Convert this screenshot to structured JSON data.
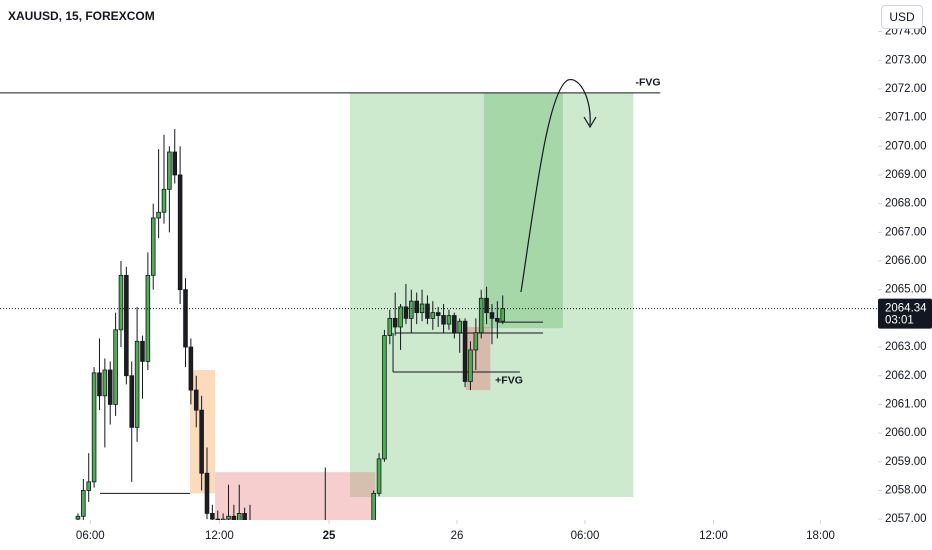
{
  "chart_data": {
    "type": "candlestick",
    "title": "XAUUSD, 15, FOREXCOM",
    "currency": "USD",
    "up_color": "#4caf50",
    "down_color": "#1e1e1e",
    "wick_color": "#131722",
    "x": [
      15,
      16,
      17,
      18,
      19,
      20,
      21,
      22,
      23,
      24,
      25,
      26,
      27,
      28,
      29,
      30,
      31,
      32,
      33,
      34,
      35,
      36,
      37,
      38,
      39,
      40,
      41,
      42,
      43,
      44,
      45,
      46,
      47,
      48,
      49,
      50,
      51,
      52,
      53,
      54,
      55,
      56,
      57,
      58,
      59,
      60,
      61,
      62,
      63,
      64,
      65,
      66,
      67,
      68,
      69,
      70,
      71,
      72,
      73,
      74,
      75,
      76,
      77,
      78,
      79,
      80,
      81,
      82,
      83,
      84,
      85,
      86,
      87,
      88,
      89,
      90,
      91,
      92,
      93,
      94
    ],
    "open": [
      2057.0,
      2057.1,
      2058.0,
      2058.3,
      2062.1,
      2061.3,
      2062.2,
      2061.0,
      2063.6,
      2065.5,
      2062.0,
      2060.2,
      2063.2,
      2062.5,
      2065.5,
      2067.5,
      2067.7,
      2068.5,
      2069.8,
      2069.0,
      2065.0,
      2063.0,
      2061.5,
      2060.8,
      2058.6,
      2057.2,
      2057.0,
      2056.9,
      2057.0,
      2057.1,
      2056.9,
      2057.2,
      2056.9,
      2056.7,
      2056.7,
      2056.6,
      2056.7,
      2056.6,
      2056.7,
      2056.6,
      2056.7,
      2056.6,
      2056.7,
      2056.6,
      2056.7,
      2056.6,
      2056.8,
      2056.6,
      2056.7,
      2056.6,
      2056.7,
      2056.6,
      2056.7,
      2056.6,
      2056.7,
      2056.8,
      2057.9,
      2059.1,
      2063.4,
      2064.0,
      2063.7,
      2064.4,
      2064.0,
      2064.6,
      2064.2,
      2064.5,
      2064.0,
      2064.2,
      2064.1,
      2063.8,
      2064.1,
      2063.5,
      2063.9,
      2061.8,
      2062.9,
      2063.5,
      2064.7,
      2064.2,
      2064.0,
      2063.9
    ],
    "high": [
      2057.2,
      2058.4,
      2059.3,
      2062.3,
      2063.3,
      2062.6,
      2062.5,
      2064.2,
      2066.0,
      2065.8,
      2062.5,
      2064.4,
      2063.4,
      2066.3,
      2068.0,
      2069.9,
      2070.4,
      2070.0,
      2070.6,
      2070.0,
      2065.4,
      2063.3,
      2062.0,
      2061.3,
      2059.5,
      2057.5,
      2057.3,
      2057.2,
      2058.2,
      2057.5,
      2058.2,
      2057.4,
      2057.5,
      2056.9,
      2056.9,
      2056.8,
      2056.9,
      2056.8,
      2056.9,
      2056.8,
      2056.9,
      2056.8,
      2056.9,
      2056.8,
      2056.9,
      2056.8,
      2058.8,
      2056.8,
      2056.9,
      2056.8,
      2056.9,
      2056.8,
      2056.9,
      2056.8,
      2056.9,
      2058.0,
      2059.3,
      2063.6,
      2064.3,
      2064.9,
      2064.5,
      2065.2,
      2065.0,
      2064.9,
      2065.0,
      2064.8,
      2064.6,
      2064.4,
      2064.5,
      2064.3,
      2064.2,
      2064.0,
      2064.0,
      2063.2,
      2064.0,
      2065.0,
      2065.1,
      2064.5,
      2064.6,
      2064.8
    ],
    "low": [
      2056.9,
      2056.9,
      2057.6,
      2058.1,
      2060.8,
      2059.5,
      2060.3,
      2060.6,
      2063.0,
      2061.7,
      2058.3,
      2059.7,
      2061.2,
      2062.2,
      2065.0,
      2066.8,
      2067.3,
      2067.0,
      2068.7,
      2064.5,
      2062.3,
      2061.0,
      2060.2,
      2058.0,
      2057.0,
      2056.8,
      2056.7,
      2056.6,
      2056.8,
      2056.7,
      2056.8,
      2056.7,
      2056.7,
      2056.5,
      2056.5,
      2056.4,
      2056.5,
      2056.4,
      2056.5,
      2056.4,
      2056.5,
      2056.4,
      2056.5,
      2056.4,
      2056.5,
      2056.4,
      2056.5,
      2056.4,
      2056.5,
      2056.4,
      2056.5,
      2056.4,
      2056.5,
      2056.4,
      2056.5,
      2056.7,
      2057.8,
      2059.0,
      2063.1,
      2063.4,
      2062.9,
      2063.8,
      2063.5,
      2063.8,
      2063.9,
      2063.8,
      2063.6,
      2063.7,
      2063.5,
      2063.6,
      2063.3,
      2062.8,
      2061.6,
      2061.5,
      2062.2,
      2063.3,
      2063.8,
      2063.1,
      2063.3,
      2063.8
    ],
    "close": [
      2057.1,
      2058.0,
      2058.3,
      2062.1,
      2061.3,
      2062.2,
      2061.0,
      2063.6,
      2065.5,
      2062.0,
      2060.2,
      2063.2,
      2062.5,
      2065.5,
      2067.5,
      2067.7,
      2068.5,
      2069.8,
      2069.0,
      2065.0,
      2063.0,
      2061.5,
      2060.8,
      2058.6,
      2057.2,
      2057.0,
      2056.9,
      2057.0,
      2057.1,
      2056.9,
      2057.2,
      2056.9,
      2056.7,
      2056.7,
      2056.6,
      2056.7,
      2056.6,
      2056.7,
      2056.6,
      2056.7,
      2056.6,
      2056.7,
      2056.6,
      2056.7,
      2056.6,
      2056.8,
      2056.6,
      2056.7,
      2056.6,
      2056.7,
      2056.6,
      2056.7,
      2056.6,
      2056.7,
      2056.8,
      2057.9,
      2059.1,
      2063.4,
      2064.0,
      2063.7,
      2064.4,
      2064.0,
      2064.6,
      2064.2,
      2064.5,
      2064.0,
      2064.2,
      2064.1,
      2063.8,
      2064.1,
      2063.5,
      2063.9,
      2061.8,
      2062.9,
      2063.5,
      2064.7,
      2064.2,
      2064.0,
      2063.9,
      2064.34
    ],
    "xlim": [
      0.5,
      163.8
    ],
    "ylim": [
      2056.97,
      2075.1
    ],
    "xticks": [
      {
        "value": 17.3,
        "label": "06:00"
      },
      {
        "value": 41.3,
        "label": "12:00"
      },
      {
        "value": 61.7,
        "label": "25",
        "bold": true
      },
      {
        "value": 85.5,
        "label": "26"
      },
      {
        "value": 109.3,
        "label": "06:00"
      },
      {
        "value": 133.2,
        "label": "12:00"
      },
      {
        "value": 153.1,
        "label": "18:00"
      }
    ],
    "yticks": [
      {
        "value": 2057,
        "label": "2057.00"
      },
      {
        "value": 2058,
        "label": "2058.00"
      },
      {
        "value": 2059,
        "label": "2059.00"
      },
      {
        "value": 2060,
        "label": "2060.00"
      },
      {
        "value": 2061,
        "label": "2061.00"
      },
      {
        "value": 2062,
        "label": "2062.00"
      },
      {
        "value": 2063,
        "label": "2063.00"
      },
      {
        "value": 2064,
        "label": "2064.00"
      },
      {
        "value": 2065,
        "label": "2065.00"
      },
      {
        "value": 2066,
        "label": "2066.00"
      },
      {
        "value": 2067,
        "label": "2067.00"
      },
      {
        "value": 2068,
        "label": "2068.00"
      },
      {
        "value": 2069,
        "label": "2069.00"
      },
      {
        "value": 2070,
        "label": "2070.00"
      },
      {
        "value": 2071,
        "label": "2071.00"
      },
      {
        "value": 2072,
        "label": "2072.00"
      },
      {
        "value": 2073,
        "label": "2073.00"
      },
      {
        "value": 2074,
        "label": "2074.00"
      }
    ],
    "last_price": 2064.34,
    "countdown": "03:01",
    "zones": [
      {
        "x0": 65.6,
        "x1": 118.3,
        "y0": 2057.77,
        "y1": 2071.86,
        "color": "rgba(76,175,80,0.28)"
      },
      {
        "x0": 90.5,
        "x1": 105.2,
        "y0": 2063.66,
        "y1": 2071.86,
        "color": "rgba(76,175,80,0.3)"
      },
      {
        "x0": 35.85,
        "x1": 40.5,
        "y0": 2057.9,
        "y1": 2062.2,
        "color": "rgba(245,166,80,0.4)"
      },
      {
        "x0": 40.5,
        "x1": 70.3,
        "y0": 2056.97,
        "y1": 2058.64,
        "color": "rgba(229,115,115,0.35)"
      },
      {
        "x0": 87.2,
        "x1": 91.7,
        "y0": 2061.5,
        "y1": 2063.7,
        "color": "rgba(229,115,115,0.4)"
      }
    ],
    "lines": [
      {
        "x1": 0.5,
        "x2": 123.3,
        "y1": 2071.86,
        "y2": 2071.86
      },
      {
        "x1": 19.1,
        "x2": 35.85,
        "y1": 2057.9,
        "y2": 2057.9
      },
      {
        "x1": 92.9,
        "x2": 101.5,
        "y1": 2063.87,
        "y2": 2063.87
      },
      {
        "x1": 74.0,
        "x2": 101.5,
        "y1": 2063.49,
        "y2": 2063.49
      },
      {
        "x1": 73.6,
        "x2": 97.2,
        "y1": 2062.13,
        "y2": 2062.13
      },
      {
        "x1": 73.6,
        "x2": 73.6,
        "y1": 2062.13,
        "y2": 2063.49
      }
    ],
    "annotations": [
      {
        "text": "-FVG",
        "x": 118.7,
        "y": 2072.22
      },
      {
        "text": "+FVG",
        "x": 92.6,
        "y": 2061.83
      }
    ]
  }
}
